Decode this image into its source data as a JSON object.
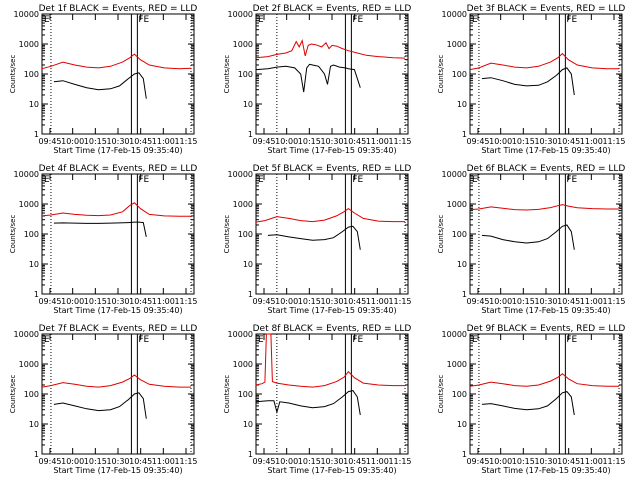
{
  "chart_data": [
    {
      "type": "line",
      "title": "Det 1f BLACK = Events, RED = LLD",
      "xlabel": "Start Time (17-Feb-15 09:35:40)",
      "ylabel": "Counts/sec",
      "ylim": [
        1,
        10000
      ],
      "yscale": "log",
      "xlim_minutes": [
        -62,
        40
      ],
      "xticks": [
        "09:45",
        "10:00",
        "10:15",
        "10:30",
        "10:45",
        "11:00",
        "11:15"
      ],
      "yticks": [
        "1",
        "10",
        "100",
        "1000",
        "10000"
      ],
      "annotations": [
        "E",
        "FE"
      ],
      "markers": {
        "dotted": [
          -56,
          38
        ],
        "solid": [
          -2,
          2
        ]
      },
      "series": [
        {
          "name": "Events",
          "color": "#000000",
          "x": [
            -54,
            -48,
            -40,
            -32,
            -24,
            -16,
            -10,
            -4,
            0,
            3,
            6,
            8
          ],
          "y": [
            55,
            60,
            45,
            35,
            30,
            32,
            40,
            70,
            100,
            110,
            70,
            15
          ]
        },
        {
          "name": "LLD",
          "color": "#e00000",
          "x": [
            -62,
            -56,
            -48,
            -40,
            -32,
            -24,
            -16,
            -8,
            -3,
            0,
            4,
            10,
            20,
            30,
            38
          ],
          "y": [
            150,
            180,
            250,
            200,
            170,
            160,
            180,
            250,
            350,
            460,
            300,
            200,
            160,
            150,
            155
          ]
        }
      ]
    },
    {
      "type": "line",
      "title": "Det 2f BLACK = Events, RED = LLD",
      "xlabel": "Start Time (17-Feb-15 09:35:40)",
      "ylabel": "Counts/sec",
      "ylim": [
        1,
        10000
      ],
      "yscale": "log",
      "xlim_minutes": [
        -62,
        40
      ],
      "xticks": [
        "09:45",
        "10:00",
        "10:15",
        "10:30",
        "10:45",
        "11:00",
        "11:15"
      ],
      "yticks": [
        "1",
        "10",
        "100",
        "1000",
        "10000"
      ],
      "annotations": [
        "E",
        "FE"
      ],
      "markers": {
        "dotted": [
          -48,
          38
        ],
        "solid": [
          -2,
          2
        ]
      },
      "series": [
        {
          "name": "Events",
          "color": "#000000",
          "x": [
            -62,
            -54,
            -48,
            -42,
            -36,
            -32,
            -30,
            -28,
            -26,
            -24,
            -20,
            -16,
            -14,
            -12,
            -10,
            -6,
            -2,
            0,
            4,
            8
          ],
          "y": [
            140,
            150,
            170,
            180,
            160,
            100,
            25,
            160,
            210,
            200,
            180,
            100,
            45,
            180,
            200,
            170,
            160,
            150,
            140,
            35
          ]
        },
        {
          "name": "LLD",
          "color": "#e00000",
          "x": [
            -62,
            -54,
            -48,
            -42,
            -38,
            -35,
            -33,
            -31,
            -29,
            -27,
            -25,
            -22,
            -18,
            -15,
            -13,
            -11,
            -8,
            -4,
            0,
            6,
            12,
            20,
            30,
            38
          ],
          "y": [
            350,
            380,
            450,
            500,
            600,
            1200,
            800,
            1300,
            400,
            900,
            1000,
            950,
            800,
            1100,
            700,
            900,
            850,
            700,
            600,
            500,
            420,
            380,
            350,
            340
          ]
        }
      ]
    },
    {
      "type": "line",
      "title": "Det 3f BLACK = Events, RED = LLD",
      "xlabel": "Start Time (17-Feb-15 09:35:40)",
      "ylabel": "Counts/sec",
      "ylim": [
        1,
        10000
      ],
      "yscale": "log",
      "xlim_minutes": [
        -62,
        40
      ],
      "xticks": [
        "09:45",
        "10:00",
        "10:15",
        "10:30",
        "10:45",
        "11:00",
        "11:15"
      ],
      "yticks": [
        "1",
        "10",
        "100",
        "1000",
        "10000"
      ],
      "annotations": [
        "E",
        "FE"
      ],
      "markers": {
        "dotted": [
          -56,
          38
        ],
        "solid": [
          -2,
          2
        ]
      },
      "series": [
        {
          "name": "Events",
          "color": "#000000",
          "x": [
            -54,
            -48,
            -40,
            -32,
            -24,
            -16,
            -10,
            -4,
            0,
            3,
            6,
            8
          ],
          "y": [
            70,
            75,
            60,
            45,
            40,
            42,
            55,
            90,
            140,
            160,
            100,
            20
          ]
        },
        {
          "name": "LLD",
          "color": "#e00000",
          "x": [
            -62,
            -56,
            -48,
            -40,
            -32,
            -24,
            -16,
            -8,
            -3,
            0,
            4,
            10,
            20,
            30,
            38
          ],
          "y": [
            140,
            160,
            230,
            200,
            170,
            160,
            180,
            250,
            350,
            480,
            300,
            200,
            160,
            150,
            150
          ]
        }
      ]
    },
    {
      "type": "line",
      "title": "Det 4f BLACK = Events, RED = LLD",
      "xlabel": "Start Time (17-Feb-15 09:35:40)",
      "ylabel": "Counts/sec",
      "ylim": [
        1,
        10000
      ],
      "yscale": "log",
      "xlim_minutes": [
        -62,
        40
      ],
      "xticks": [
        "09:45",
        "10:00",
        "10:15",
        "10:30",
        "10:45",
        "11:00",
        "11:15"
      ],
      "yticks": [
        "1",
        "10",
        "100",
        "1000",
        "10000"
      ],
      "annotations": [
        "E",
        "FE"
      ],
      "markers": {
        "dotted": [
          -56,
          38
        ],
        "solid": [
          -2,
          2
        ]
      },
      "series": [
        {
          "name": "Events",
          "color": "#000000",
          "x": [
            -54,
            -48,
            -40,
            -32,
            -24,
            -16,
            -10,
            -4,
            0,
            3,
            6,
            8
          ],
          "y": [
            230,
            235,
            230,
            225,
            225,
            230,
            235,
            240,
            250,
            250,
            240,
            80
          ]
        },
        {
          "name": "LLD",
          "color": "#e00000",
          "x": [
            -62,
            -56,
            -48,
            -40,
            -32,
            -24,
            -16,
            -8,
            -3,
            0,
            4,
            10,
            20,
            30,
            38
          ],
          "y": [
            400,
            430,
            500,
            450,
            420,
            410,
            430,
            550,
            900,
            1100,
            700,
            450,
            400,
            390,
            390
          ]
        }
      ]
    },
    {
      "type": "line",
      "title": "Det 5f BLACK = Events, RED = LLD",
      "xlabel": "Start Time (17-Feb-15 09:35:40)",
      "ylabel": "Counts/sec",
      "ylim": [
        1,
        10000
      ],
      "yscale": "log",
      "xlim_minutes": [
        -62,
        40
      ],
      "xticks": [
        "09:45",
        "10:00",
        "10:15",
        "10:30",
        "10:45",
        "11:00",
        "11:15"
      ],
      "yticks": [
        "1",
        "10",
        "100",
        "1000",
        "10000"
      ],
      "annotations": [
        "E",
        "FE"
      ],
      "markers": {
        "dotted": [
          -48,
          38
        ],
        "solid": [
          -2,
          2
        ]
      },
      "series": [
        {
          "name": "Events",
          "color": "#000000",
          "x": [
            -54,
            -48,
            -40,
            -32,
            -24,
            -16,
            -10,
            -4,
            0,
            3,
            6,
            8
          ],
          "y": [
            90,
            95,
            80,
            70,
            62,
            65,
            75,
            120,
            170,
            180,
            120,
            30
          ]
        },
        {
          "name": "LLD",
          "color": "#e00000",
          "x": [
            -62,
            -56,
            -48,
            -40,
            -32,
            -24,
            -16,
            -8,
            -3,
            0,
            4,
            10,
            20,
            30,
            38
          ],
          "y": [
            250,
            280,
            380,
            330,
            280,
            260,
            290,
            400,
            550,
            700,
            500,
            330,
            270,
            260,
            260
          ]
        }
      ]
    },
    {
      "type": "line",
      "title": "Det 6f BLACK = Events, RED = LLD",
      "xlabel": "Start Time (17-Feb-15 09:35:40)",
      "ylabel": "Counts/sec",
      "ylim": [
        1,
        10000
      ],
      "yscale": "log",
      "xlim_minutes": [
        -62,
        40
      ],
      "xticks": [
        "09:45",
        "10:00",
        "10:15",
        "10:30",
        "10:45",
        "11:00",
        "11:15"
      ],
      "yticks": [
        "1",
        "10",
        "100",
        "1000",
        "10000"
      ],
      "annotations": [
        "E",
        "FE"
      ],
      "markers": {
        "dotted": [
          -56,
          38
        ],
        "solid": [
          -2,
          2
        ]
      },
      "series": [
        {
          "name": "Events",
          "color": "#000000",
          "x": [
            -54,
            -48,
            -40,
            -32,
            -24,
            -16,
            -10,
            -4,
            0,
            3,
            6,
            8
          ],
          "y": [
            90,
            85,
            65,
            55,
            50,
            55,
            70,
            120,
            180,
            200,
            120,
            30
          ]
        },
        {
          "name": "LLD",
          "color": "#e00000",
          "x": [
            -62,
            -56,
            -48,
            -40,
            -32,
            -24,
            -16,
            -8,
            -3,
            0,
            4,
            10,
            20,
            30,
            38
          ],
          "y": [
            650,
            680,
            800,
            720,
            650,
            630,
            660,
            760,
            880,
            950,
            850,
            750,
            700,
            680,
            680
          ]
        }
      ]
    },
    {
      "type": "line",
      "title": "Det 7f BLACK = Events, RED = LLD",
      "xlabel": "Start Time (17-Feb-15 09:35:40)",
      "ylabel": "Counts/sec",
      "ylim": [
        1,
        10000
      ],
      "yscale": "log",
      "xlim_minutes": [
        -62,
        40
      ],
      "xticks": [
        "09:45",
        "10:00",
        "10:15",
        "10:30",
        "10:45",
        "11:00",
        "11:15"
      ],
      "yticks": [
        "1",
        "10",
        "100",
        "1000",
        "10000"
      ],
      "annotations": [
        "E",
        "FE"
      ],
      "markers": {
        "dotted": [
          -56,
          38
        ],
        "solid": [
          -2,
          2
        ]
      },
      "series": [
        {
          "name": "Events",
          "color": "#000000",
          "x": [
            -54,
            -48,
            -40,
            -32,
            -24,
            -16,
            -10,
            -4,
            0,
            3,
            6,
            8
          ],
          "y": [
            45,
            50,
            40,
            32,
            28,
            30,
            38,
            65,
            100,
            110,
            70,
            15
          ]
        },
        {
          "name": "LLD",
          "color": "#e00000",
          "x": [
            -62,
            -56,
            -48,
            -40,
            -32,
            -24,
            -16,
            -8,
            -3,
            0,
            4,
            10,
            20,
            30,
            38
          ],
          "y": [
            170,
            190,
            240,
            210,
            180,
            170,
            190,
            250,
            330,
            430,
            300,
            210,
            180,
            170,
            170
          ]
        }
      ]
    },
    {
      "type": "line",
      "title": "Det 8f BLACK = Events, RED = LLD",
      "xlabel": "Start Time (17-Feb-15 09:35:40)",
      "ylabel": "Counts/sec",
      "ylim": [
        1,
        10000
      ],
      "yscale": "log",
      "xlim_minutes": [
        -62,
        40
      ],
      "xticks": [
        "09:45",
        "10:00",
        "10:15",
        "10:30",
        "10:45",
        "11:00",
        "11:15"
      ],
      "yticks": [
        "1",
        "10",
        "100",
        "1000",
        "10000"
      ],
      "annotations": [
        "E",
        "FE"
      ],
      "markers": {
        "dotted": [
          -48,
          38
        ],
        "solid": [
          -2,
          2
        ]
      },
      "series": [
        {
          "name": "Events",
          "color": "#000000",
          "x": [
            -62,
            -54,
            -50,
            -48,
            -46,
            -40,
            -32,
            -24,
            -16,
            -10,
            -4,
            0,
            3,
            6,
            8
          ],
          "y": [
            55,
            60,
            60,
            25,
            55,
            50,
            40,
            35,
            38,
            48,
            80,
            120,
            130,
            80,
            20
          ]
        },
        {
          "name": "LLD",
          "color": "#e00000",
          "x": [
            -62,
            -58,
            -56,
            -55,
            -52,
            -51,
            -48,
            -40,
            -32,
            -24,
            -16,
            -8,
            -3,
            0,
            4,
            10,
            20,
            30,
            38
          ],
          "y": [
            200,
            220,
            250,
            10000,
            10000,
            260,
            230,
            200,
            180,
            170,
            190,
            260,
            360,
            560,
            350,
            230,
            200,
            190,
            190
          ]
        }
      ]
    },
    {
      "type": "line",
      "title": "Det 9f BLACK = Events, RED = LLD",
      "xlabel": "Start Time (17-Feb-15 09:35:40)",
      "ylabel": "Counts/sec",
      "ylim": [
        1,
        10000
      ],
      "yscale": "log",
      "xlim_minutes": [
        -62,
        40
      ],
      "xticks": [
        "09:45",
        "10:00",
        "10:15",
        "10:30",
        "10:45",
        "11:00",
        "11:15"
      ],
      "yticks": [
        "1",
        "10",
        "100",
        "1000",
        "10000"
      ],
      "annotations": [
        "E",
        "FE"
      ],
      "markers": {
        "dotted": [
          -56,
          38
        ],
        "solid": [
          -2,
          2
        ]
      },
      "series": [
        {
          "name": "Events",
          "color": "#000000",
          "x": [
            -54,
            -48,
            -40,
            -32,
            -24,
            -16,
            -10,
            -4,
            0,
            3,
            6,
            8
          ],
          "y": [
            45,
            48,
            40,
            33,
            30,
            32,
            40,
            70,
            110,
            120,
            80,
            20
          ]
        },
        {
          "name": "LLD",
          "color": "#e00000",
          "x": [
            -62,
            -56,
            -48,
            -40,
            -32,
            -24,
            -16,
            -8,
            -3,
            0,
            4,
            10,
            20,
            30,
            38
          ],
          "y": [
            180,
            200,
            250,
            220,
            190,
            180,
            200,
            270,
            360,
            470,
            320,
            220,
            190,
            180,
            180
          ]
        }
      ]
    }
  ]
}
